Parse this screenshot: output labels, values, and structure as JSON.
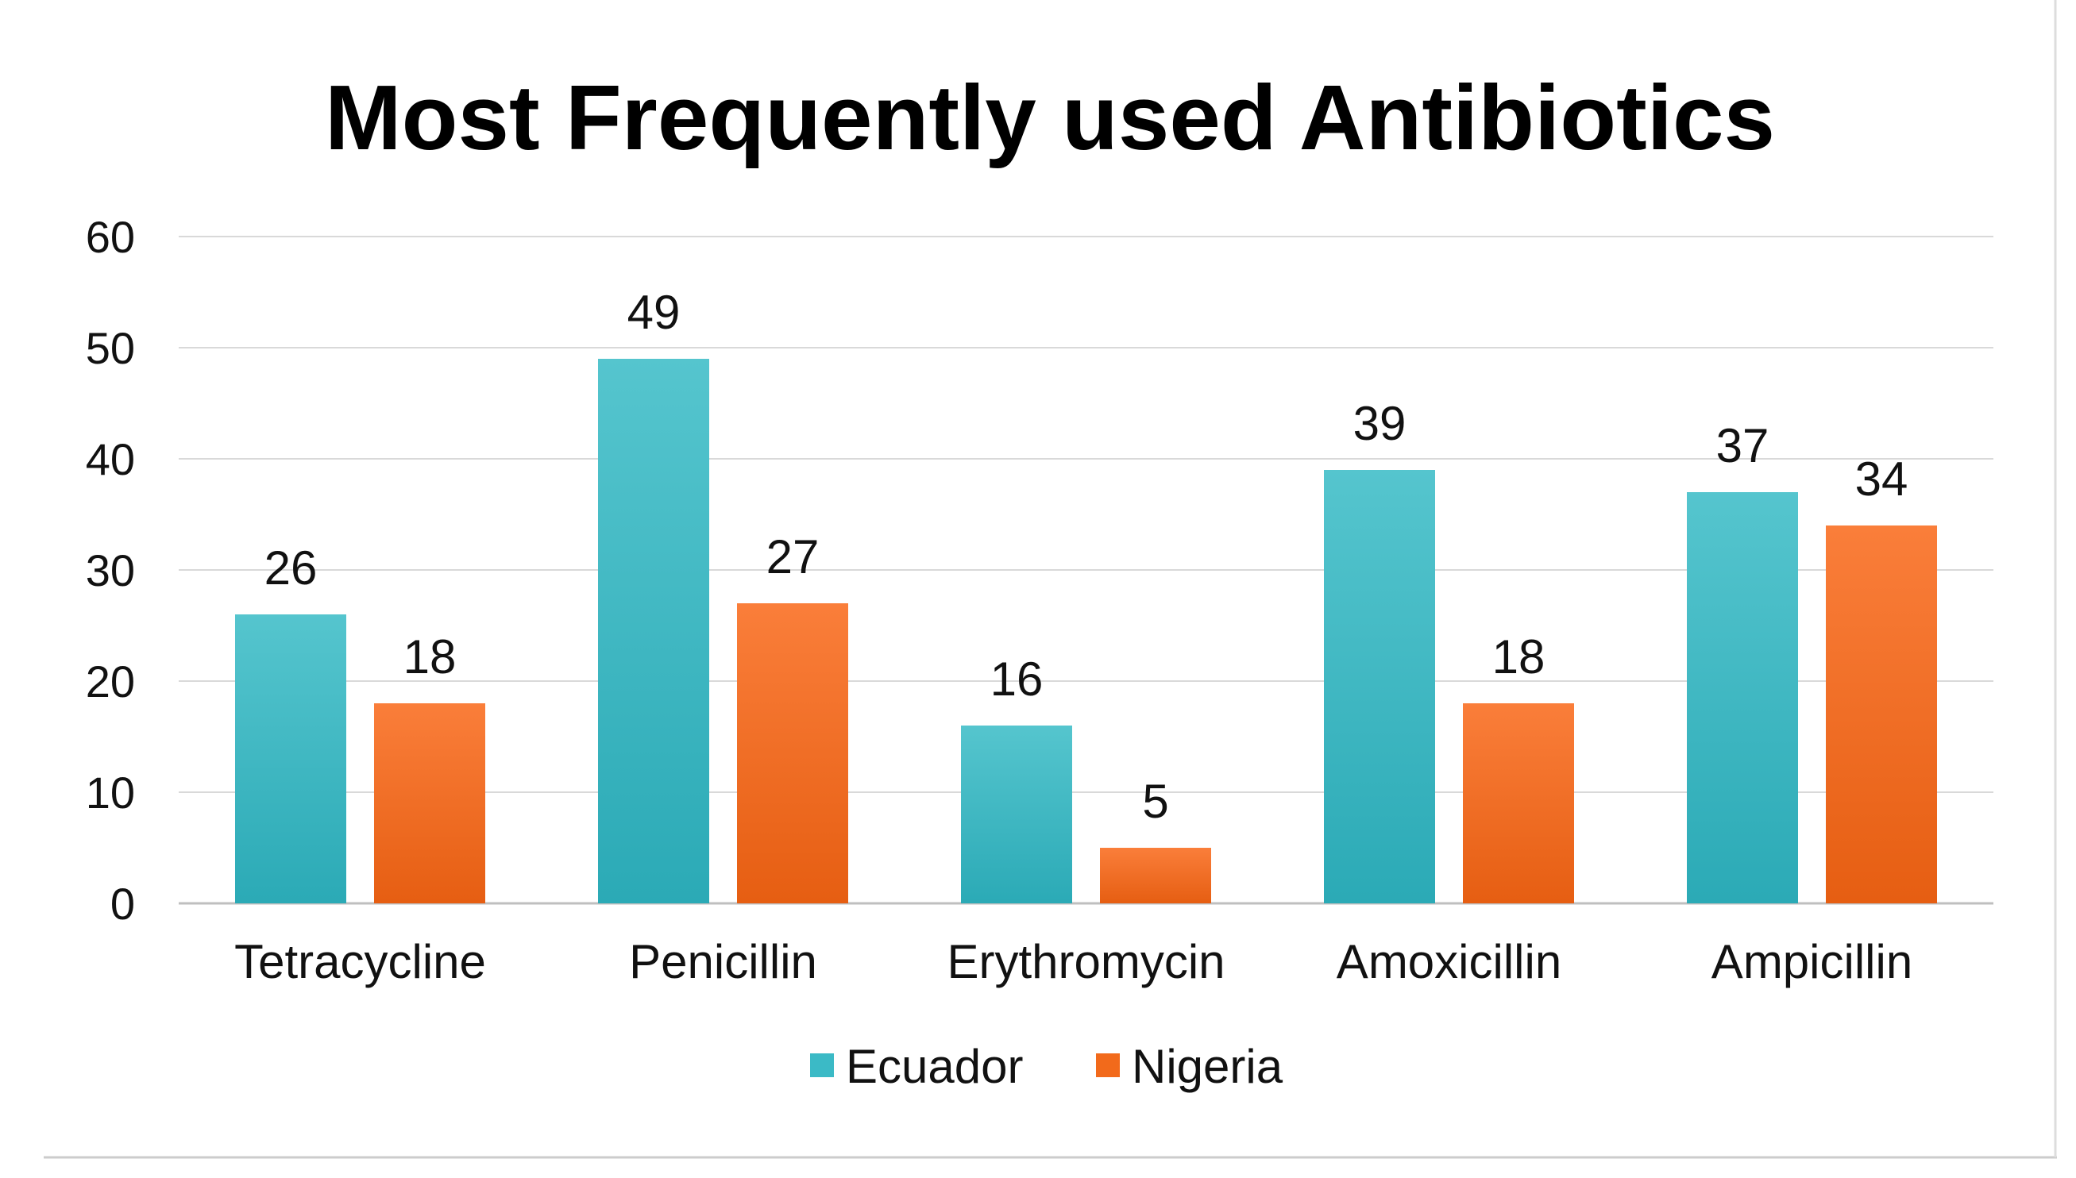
{
  "chart_data": {
    "type": "bar",
    "title": "Most Frequently used Antibiotics",
    "categories": [
      "Tetracycline",
      "Penicillin",
      "Erythromycin",
      "Amoxicillin",
      "Ampicillin"
    ],
    "series": [
      {
        "name": "Ecuador",
        "values": [
          26,
          49,
          16,
          39,
          37
        ],
        "color": "#3BBAC6"
      },
      {
        "name": "Nigeria",
        "values": [
          18,
          27,
          5,
          18,
          34
        ],
        "color": "#F26A1B"
      }
    ],
    "xlabel": "",
    "ylabel": "",
    "ylim": [
      0,
      60
    ],
    "yticks": [
      0,
      10,
      20,
      30,
      40,
      50,
      60
    ],
    "grid": true,
    "legend": "bottom",
    "data_labels": true
  }
}
